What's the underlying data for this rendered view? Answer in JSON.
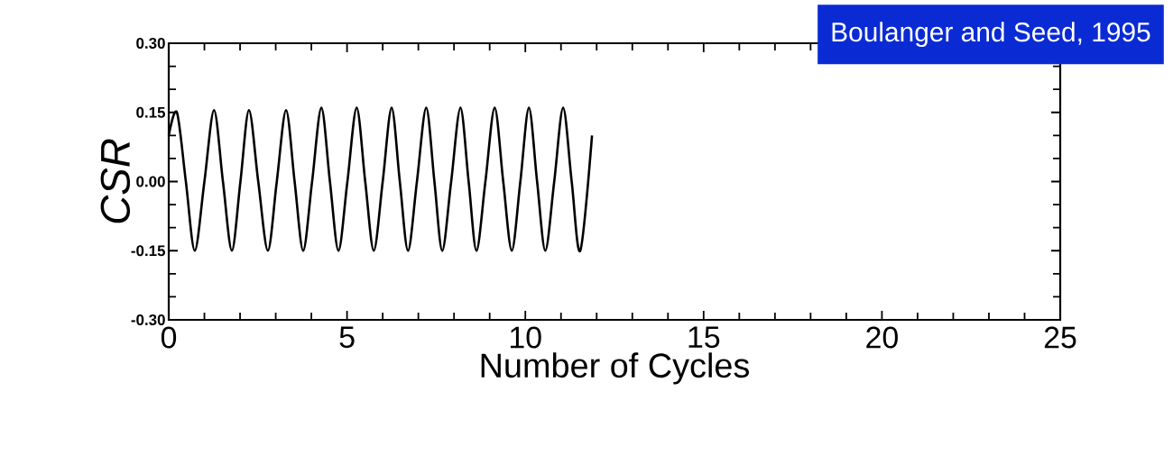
{
  "chart_data": {
    "type": "line",
    "xlabel": "Number of Cycles",
    "ylabel": "*CSR*",
    "annotations": [
      "Boulanger and Seed, 1995"
    ],
    "xlim": [
      0,
      25
    ],
    "xticks": [
      0,
      5,
      10,
      15,
      20,
      25
    ],
    "ylim": [
      -0.3,
      0.3
    ],
    "yticks": [
      {
        "value": -0.3,
        "label": "-0.30"
      },
      {
        "value": -0.15,
        "label": "-0.15"
      },
      {
        "value": 0,
        "label": "0.00"
      },
      {
        "value": 0.15,
        "label": "0.15"
      },
      {
        "value": 0.3,
        "label": "0.30"
      }
    ],
    "color": "#000000",
    "marker": "none",
    "line_style": "solid",
    "grid": false,
    "x": [
      0,
      0.23,
      0.48,
      0.73,
      1.0,
      1.27,
      1.52,
      1.77,
      2.01,
      2.25,
      2.51,
      2.78,
      3.03,
      3.29,
      3.53,
      3.77,
      4.02,
      4.28,
      4.52,
      4.76,
      5.01,
      5.27,
      5.51,
      5.75,
      6.0,
      6.25,
      6.48,
      6.71,
      6.96,
      7.22,
      7.45,
      7.67,
      7.92,
      8.18,
      8.41,
      8.63,
      8.88,
      9.14,
      9.38,
      9.62,
      9.86,
      10.1,
      10.33,
      10.56,
      10.81,
      11.06,
      11.3,
      11.54,
      11.87
    ],
    "values": [
      0.1,
      0.15,
      0,
      -0.15,
      0,
      0.155,
      0,
      -0.15,
      0,
      0.155,
      0,
      -0.15,
      0,
      0.155,
      0,
      -0.15,
      0,
      0.16,
      0,
      -0.15,
      0,
      0.16,
      0,
      -0.15,
      0,
      0.16,
      0,
      -0.15,
      0,
      0.16,
      0,
      -0.15,
      0,
      0.16,
      0,
      -0.15,
      0,
      0.16,
      0,
      -0.15,
      0,
      0.16,
      0,
      -0.15,
      0,
      0.16,
      0,
      -0.15,
      0.1
    ]
  }
}
